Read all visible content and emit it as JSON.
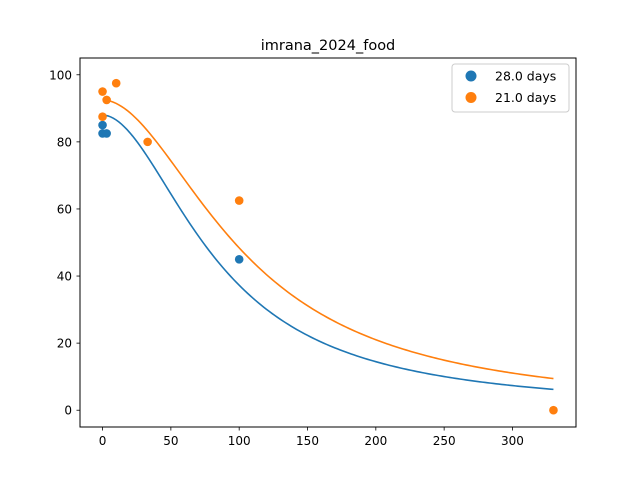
{
  "chart_data": {
    "type": "scatter",
    "title": "imrana_2024_food",
    "xlabel": "",
    "ylabel": "",
    "xlim": [
      -16.5,
      346.5
    ],
    "ylim": [
      -5,
      105
    ],
    "xticks": [
      0,
      50,
      100,
      150,
      200,
      250,
      300
    ],
    "yticks": [
      0,
      20,
      40,
      60,
      80,
      100
    ],
    "grid": false,
    "legend_position": "top-right",
    "series": [
      {
        "name": "28.0 days",
        "color": "#1f77b4",
        "points": [
          [
            0,
            85.0
          ],
          [
            0,
            82.5
          ],
          [
            3,
            82.5
          ],
          [
            100,
            45.0
          ]
        ],
        "fit": {
          "ymax": 88,
          "x50": 85,
          "n": 1.9
        }
      },
      {
        "name": "21.0 days",
        "color": "#ff7f0e",
        "points": [
          [
            0,
            95.0
          ],
          [
            0,
            87.5
          ],
          [
            3,
            92.5
          ],
          [
            10,
            97.5
          ],
          [
            33,
            80.0
          ],
          [
            100,
            62.5
          ],
          [
            330,
            0.0
          ]
        ],
        "fit": {
          "ymax": 92.5,
          "x50": 105,
          "n": 1.9
        }
      }
    ]
  }
}
